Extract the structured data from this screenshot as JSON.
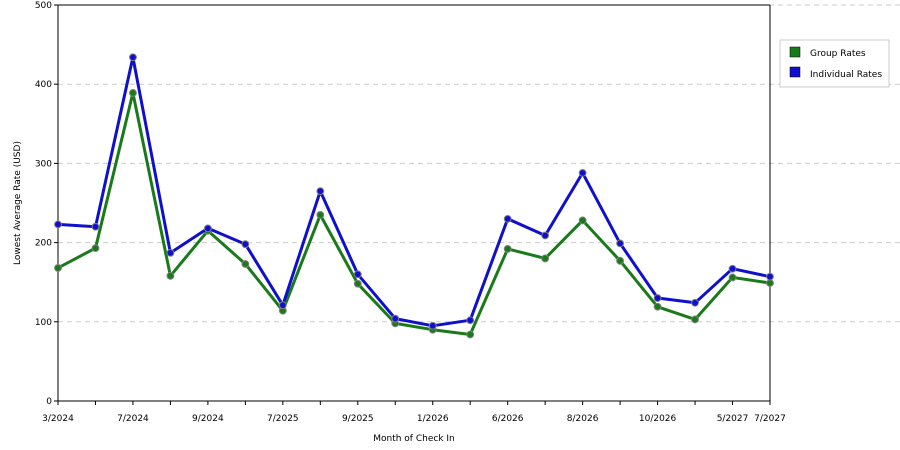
{
  "chart_data": {
    "type": "line",
    "title": "",
    "xlabel": "Month of Check In",
    "ylabel": "Lowest Average Rate (USD)",
    "ylim": [
      0,
      500
    ],
    "yticks": [
      0,
      100,
      200,
      300,
      400,
      500
    ],
    "grid": true,
    "legend_position": "top-right",
    "x_tick_labels": [
      {
        "index": 0,
        "label": "3/2024"
      },
      {
        "index": 2,
        "label": "7/2024"
      },
      {
        "index": 4,
        "label": "9/2024"
      },
      {
        "index": 6,
        "label": "7/2025"
      },
      {
        "index": 8,
        "label": "9/2025"
      },
      {
        "index": 10,
        "label": "1/2026"
      },
      {
        "index": 12,
        "label": "6/2026"
      },
      {
        "index": 14,
        "label": "8/2026"
      },
      {
        "index": 16,
        "label": "10/2026"
      },
      {
        "index": 18,
        "label": "5/2027"
      },
      {
        "index": 19,
        "label": "7/2027"
      }
    ],
    "series": [
      {
        "name": "Group Rates",
        "color": "#1a7a1a",
        "values": [
          168,
          193,
          389,
          158,
          215,
          173,
          114,
          235,
          148,
          98,
          90,
          84,
          192,
          180,
          228,
          177,
          119,
          103,
          156,
          149
        ]
      },
      {
        "name": "Individual Rates",
        "color": "#1010cc",
        "values": [
          223,
          220,
          434,
          187,
          218,
          198,
          121,
          265,
          160,
          104,
          95,
          102,
          230,
          209,
          288,
          199,
          130,
          124,
          167,
          157
        ]
      }
    ]
  }
}
